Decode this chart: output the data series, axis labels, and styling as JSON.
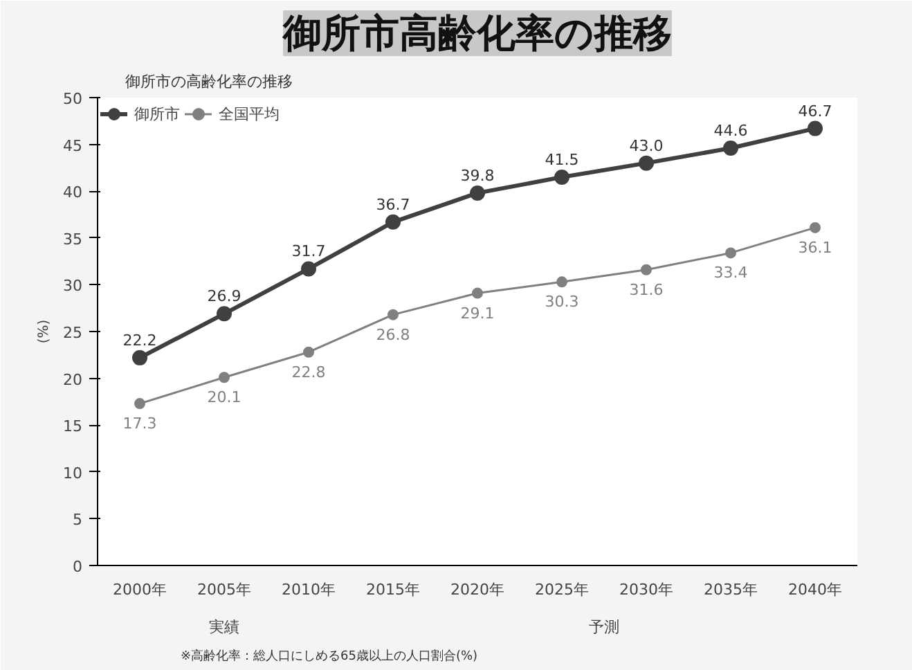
{
  "chart_data": {
    "type": "line",
    "title": "御所市高齢化率の推移",
    "subtitle": "御所市の高齢化率の推移",
    "ylabel": "(%)",
    "categories": [
      "2000年",
      "2005年",
      "2010年",
      "2015年",
      "2020年",
      "2025年",
      "2030年",
      "2035年",
      "2040年"
    ],
    "series": [
      {
        "name": "御所市",
        "color": "#404040",
        "values": [
          22.2,
          26.9,
          31.7,
          36.7,
          39.8,
          41.5,
          43,
          44.6,
          46.7
        ],
        "value_labels": [
          "22.2",
          "26.9",
          "31.7",
          "36.7",
          "39.8",
          "41.5",
          "43.0",
          "44.6",
          "46.7"
        ]
      },
      {
        "name": "全国平均",
        "color": "#808080",
        "values": [
          17.3,
          20.1,
          22.8,
          26.8,
          29.1,
          30.3,
          31.6,
          33.4,
          36.1
        ],
        "value_labels": [
          "17.3",
          "20.1",
          "22.8",
          "26.8",
          "29.1",
          "30.3",
          "31.6",
          "33.4",
          "36.1"
        ]
      }
    ],
    "ylim": [
      0,
      50
    ],
    "yticks": [
      0,
      5,
      10,
      15,
      20,
      25,
      30,
      35,
      40,
      45,
      50
    ],
    "grid": false,
    "legend": "top left",
    "marker": "circle",
    "line_style": "solid",
    "annotations": [
      "実績",
      "予測",
      "※高齢化率：総人口にしめる65歳以上の人口割合(%)"
    ]
  }
}
